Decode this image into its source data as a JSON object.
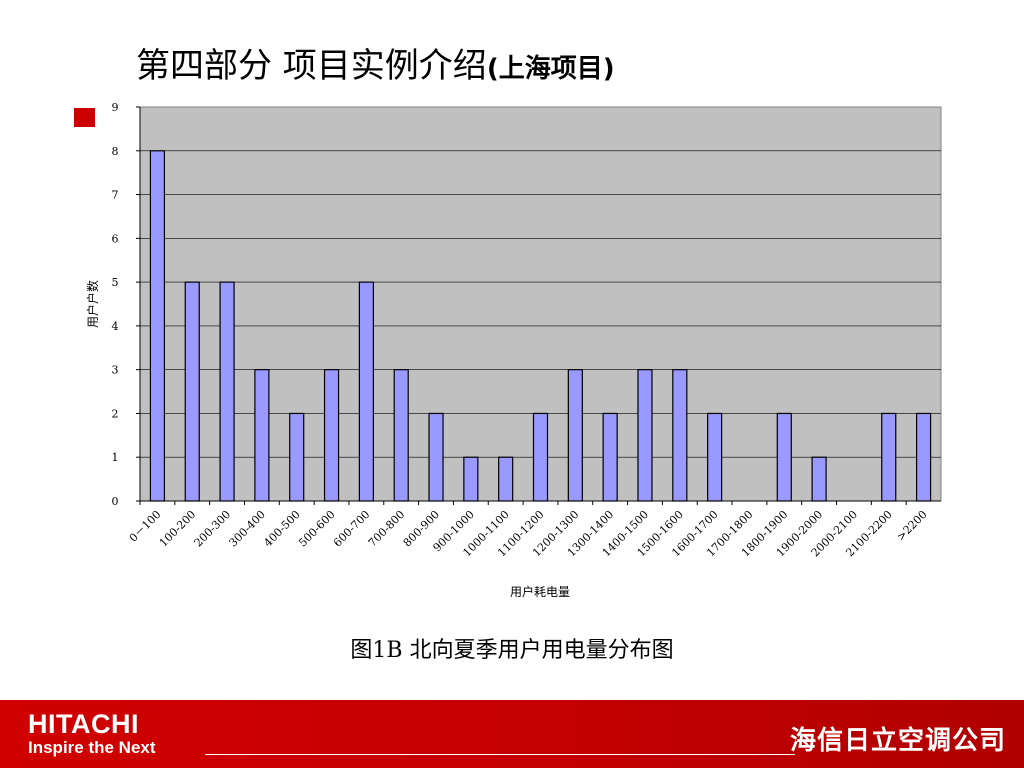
{
  "slide": {
    "title_main": "第四部分   项目实例介绍",
    "title_sub": "(上海项目)",
    "caption": "图1B 北向夏季用户用电量分布图"
  },
  "footer": {
    "brand": "HITACHI",
    "tagline": "Inspire the Next",
    "company": "海信日立空调公司"
  },
  "colors": {
    "plot_bg": "#c0c0c0",
    "bar_fill": "#9999ff",
    "bar_stroke": "#000000",
    "legend_swatch": "#cc0000",
    "footer_bg": "#cc0000"
  },
  "chart_data": {
    "type": "bar",
    "title": "",
    "xlabel": "用户耗电量",
    "ylabel": "用户户数",
    "ylim": [
      0,
      9
    ],
    "yticks": [
      "0",
      "1",
      "2",
      "3",
      "4",
      "5",
      "6",
      "7",
      "8",
      "9"
    ],
    "grid": true,
    "categories": [
      "0－100",
      "100-200",
      "200-300",
      "300-400",
      "400-500",
      "500-600",
      "600-700",
      "700-800",
      "800-900",
      "900-1000",
      "1000-1100",
      "1100-1200",
      "1200-1300",
      "1300-1400",
      "1400-1500",
      "1500-1600",
      "1600-1700",
      "1700-1800",
      "1800-1900",
      "1900-2000",
      "2000-2100",
      "2100-2200",
      ">2200"
    ],
    "values": [
      8,
      5,
      5,
      3,
      2,
      3,
      5,
      3,
      2,
      1,
      1,
      2,
      3,
      2,
      3,
      3,
      2,
      0,
      2,
      1,
      0,
      2,
      2
    ]
  }
}
